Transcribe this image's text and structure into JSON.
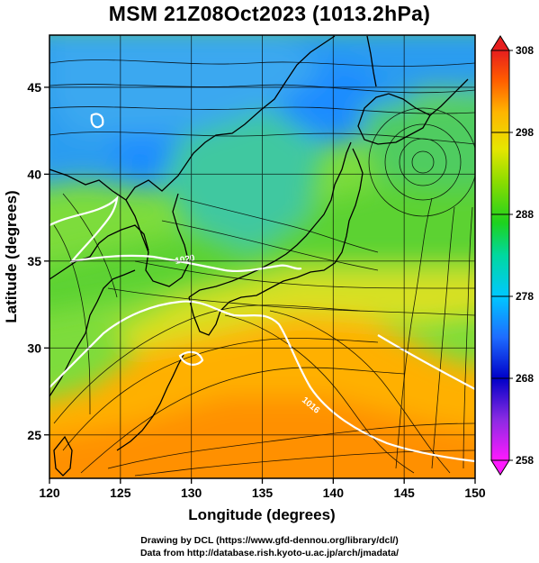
{
  "title": "MSM 21Z08Oct2023 (1013.2hPa)",
  "x_axis": {
    "label": "Longitude (degrees)",
    "range": [
      120,
      150
    ],
    "ticks": [
      120,
      125,
      130,
      135,
      140,
      145,
      150
    ],
    "tick_labels": [
      "120",
      "125",
      "130",
      "135",
      "140",
      "145",
      "150"
    ]
  },
  "y_axis": {
    "label": "Latitude  (degrees)",
    "range": [
      22.5,
      48
    ],
    "ticks": [
      25,
      30,
      35,
      40,
      45
    ],
    "tick_labels": [
      "25",
      "30",
      "35",
      "40",
      "45"
    ]
  },
  "colorbar": {
    "range": [
      258,
      308
    ],
    "tick_values": [
      258,
      268,
      278,
      288,
      298,
      308
    ],
    "tick_labels": [
      "258",
      "268",
      "278",
      "288",
      "298",
      "308"
    ],
    "colors": [
      "#ff1aff",
      "#8a2be2",
      "#0000c8",
      "#1e6cff",
      "#00c8ff",
      "#00d8a0",
      "#1ed21e",
      "#8cdc00",
      "#e6e600",
      "#ffb400",
      "#ff5a00",
      "#e61e1e"
    ]
  },
  "isobar_labels": [
    "1020",
    "1016"
  ],
  "colors": {
    "cold": "#2aa0ff",
    "cool": "#3cd2b4",
    "mild": "#46d246",
    "warm": "#e6e61e",
    "hot": "#ff9600",
    "land_outline": "#000000",
    "isobar": "#ffffff"
  },
  "credits": {
    "line1": "Drawing by DCL (https://www.gfd-dennou.org/library/dcl/)",
    "line2": "Data from http://database.rish.kyoto-u.ac.jp/arch/jmadata/"
  }
}
